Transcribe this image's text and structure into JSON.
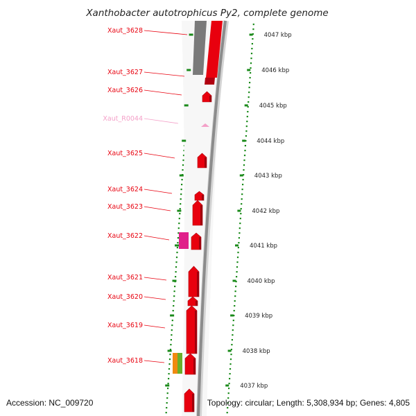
{
  "title": "Xanthobacter autotrophicus Py2, complete genome",
  "footer": {
    "accession": "Accession: NC_009720",
    "summary": "Topology: circular; Length: 5,308,934 bp; Genes: 4,805"
  },
  "colors": {
    "gene": "#e8000e",
    "rna": "#f4a0c8",
    "backbone": "#8c8c8c",
    "ticks": "#1a8a1a",
    "magenta": "#e0208a",
    "orange": "#f08a10",
    "green": "#6ab02a"
  },
  "scale": {
    "unit": "kbp",
    "ticks": [
      {
        "label": "4047 kbp"
      },
      {
        "label": "4046 kbp"
      },
      {
        "label": "4045 kbp"
      },
      {
        "label": "4044 kbp"
      },
      {
        "label": "4043 kbp"
      },
      {
        "label": "4042 kbp"
      },
      {
        "label": "4041 kbp"
      },
      {
        "label": "4040 kbp"
      },
      {
        "label": "4039 kbp"
      },
      {
        "label": "4038 kbp"
      },
      {
        "label": "4037 kbp"
      }
    ]
  },
  "genes": [
    {
      "name": "Xaut_3628",
      "type": "gene"
    },
    {
      "name": "Xaut_3627",
      "type": "gene"
    },
    {
      "name": "Xaut_3626",
      "type": "gene"
    },
    {
      "name": "Xaut_R0044",
      "type": "rna"
    },
    {
      "name": "Xaut_3625",
      "type": "gene"
    },
    {
      "name": "Xaut_3624",
      "type": "gene"
    },
    {
      "name": "Xaut_3623",
      "type": "gene"
    },
    {
      "name": "Xaut_3622",
      "type": "gene"
    },
    {
      "name": "Xaut_3621",
      "type": "gene"
    },
    {
      "name": "Xaut_3620",
      "type": "gene"
    },
    {
      "name": "Xaut_3619",
      "type": "gene"
    },
    {
      "name": "Xaut_3618",
      "type": "gene"
    }
  ]
}
